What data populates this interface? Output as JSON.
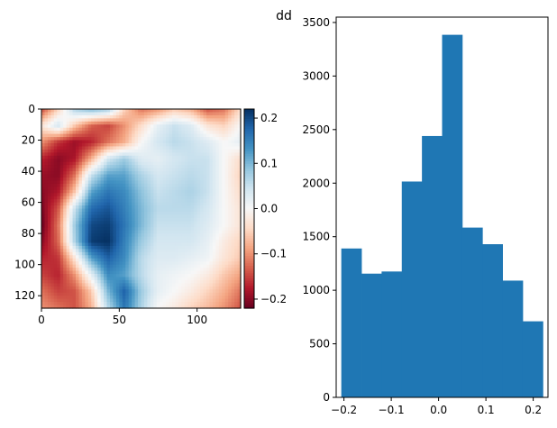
{
  "figure": {
    "title": "dd"
  },
  "chart_data": [
    {
      "type": "heatmap",
      "title": "",
      "xlabel": "",
      "ylabel": "",
      "xlim": [
        0,
        128
      ],
      "ylim": [
        128,
        0
      ],
      "x_ticks": [
        "0",
        "50",
        "100"
      ],
      "y_ticks": [
        "0",
        "20",
        "40",
        "60",
        "80",
        "100",
        "120"
      ],
      "colormap": "RdBu",
      "color_range": [
        -0.22,
        0.22
      ],
      "colorbar_ticks": [
        "0.2",
        "0.1",
        "0.0",
        "−0.1",
        "−0.2"
      ],
      "grid": [
        [
          -0.15,
          -0.05,
          0.07,
          0.1,
          0.08,
          -0.05,
          -0.12,
          -0.1,
          -0.06,
          -0.08,
          -0.14,
          -0.12,
          -0.04
        ],
        [
          -0.03,
          0.04,
          -0.06,
          -0.13,
          -0.15,
          -0.1,
          -0.04,
          0.02,
          0.05,
          0.03,
          -0.03,
          -0.05,
          0.0
        ],
        [
          -0.1,
          -0.16,
          -0.19,
          -0.17,
          -0.12,
          -0.08,
          0.0,
          0.04,
          0.06,
          0.05,
          0.03,
          0.0,
          0.02
        ],
        [
          -0.17,
          -0.2,
          -0.18,
          -0.08,
          0.04,
          0.08,
          0.03,
          0.02,
          0.04,
          0.05,
          0.05,
          0.0,
          -0.04
        ],
        [
          -0.19,
          -0.2,
          -0.12,
          0.05,
          0.12,
          0.12,
          0.07,
          0.04,
          0.05,
          0.06,
          0.05,
          0.0,
          -0.05
        ],
        [
          -0.2,
          -0.18,
          -0.06,
          0.12,
          0.16,
          0.14,
          0.09,
          0.05,
          0.06,
          0.07,
          0.05,
          0.0,
          -0.04
        ],
        [
          -0.21,
          -0.14,
          0.05,
          0.17,
          0.19,
          0.15,
          0.1,
          0.06,
          0.06,
          0.06,
          0.04,
          0.0,
          -0.03
        ],
        [
          -0.22,
          -0.12,
          0.08,
          0.2,
          0.21,
          0.16,
          0.1,
          0.05,
          0.05,
          0.05,
          0.03,
          0.0,
          -0.03
        ],
        [
          -0.2,
          -0.13,
          0.07,
          0.21,
          0.22,
          0.15,
          0.08,
          0.04,
          0.04,
          0.04,
          0.02,
          -0.02,
          -0.05
        ],
        [
          -0.17,
          -0.16,
          -0.03,
          0.12,
          0.18,
          0.14,
          0.06,
          0.03,
          0.03,
          0.02,
          0.01,
          -0.03,
          -0.06
        ],
        [
          -0.15,
          -0.17,
          -0.1,
          0.02,
          0.14,
          0.12,
          0.06,
          0.02,
          0.01,
          0.0,
          -0.02,
          -0.06,
          -0.09
        ],
        [
          -0.12,
          -0.15,
          -0.14,
          -0.06,
          0.1,
          0.18,
          0.08,
          0.02,
          0.0,
          -0.02,
          -0.05,
          -0.08,
          -0.12
        ],
        [
          -0.1,
          -0.12,
          -0.14,
          -0.08,
          0.06,
          0.16,
          0.07,
          0.0,
          -0.02,
          -0.05,
          -0.07,
          -0.1,
          -0.14
        ]
      ]
    },
    {
      "type": "bar",
      "title": "",
      "xlabel": "",
      "ylabel": "",
      "x_ticks": [
        "−0.2",
        "−0.1",
        "0.0",
        "0.1",
        "0.2"
      ],
      "y_ticks": [
        "0",
        "500",
        "1000",
        "1500",
        "2000",
        "2500",
        "3000",
        "3500"
      ],
      "ylim": [
        0,
        3550
      ],
      "bin_edges": [
        -0.2056,
        -0.163,
        -0.1204,
        -0.0778,
        -0.0352,
        0.0074,
        0.05,
        0.0926,
        0.1352,
        0.1778,
        0.2204
      ],
      "values": [
        1390,
        1155,
        1175,
        2015,
        2440,
        3385,
        1585,
        1430,
        1090,
        710
      ],
      "color": "#1f77b4"
    }
  ]
}
